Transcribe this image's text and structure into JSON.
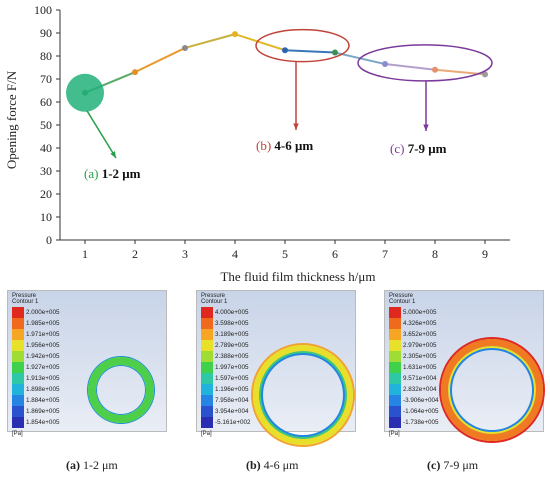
{
  "chart_data": {
    "type": "line",
    "x": [
      1,
      2,
      3,
      4,
      5,
      6,
      7,
      8,
      9
    ],
    "values": [
      64,
      73,
      83.5,
      89.5,
      82.5,
      81.5,
      76.5,
      74,
      72
    ],
    "segment_colors": [
      "#5aa96a",
      "#e79a2e",
      "#c6b13a",
      "#e1b92c",
      "#3a74b9",
      "#7aa5c4",
      "#b3a0cc",
      "#e9a878"
    ],
    "point_colors": [
      "#3b9a55",
      "#e39127",
      "#8a8a8a",
      "#e5b321",
      "#2d64b0",
      "#3d8f52",
      "#8a8cd0",
      "#e3916b",
      "#9a9a9a"
    ],
    "xlim": [
      0.5,
      9.5
    ],
    "ylim": [
      0,
      100
    ],
    "yticks": [
      0,
      10,
      20,
      30,
      40,
      50,
      60,
      70,
      80,
      90,
      100
    ],
    "xticks": [
      1,
      2,
      3,
      4,
      5,
      6,
      7,
      8,
      9
    ],
    "xlabel": "The fluid film thickness  h/μm",
    "ylabel": "Opening force    F/N",
    "annotations": [
      {
        "letter": "(a)",
        "text": "1-2 μm",
        "color": "#27a049"
      },
      {
        "letter": "(b)",
        "text": "4-6 μm",
        "color": "#c0433a"
      },
      {
        "letter": "(c)",
        "text": "7-9 μm",
        "color": "#7b3a9b"
      }
    ]
  },
  "panels": [
    {
      "title_line1": "Pressure",
      "title_line2": "Contour 1",
      "labels": [
        "2.000e+005",
        "1.985e+005",
        "1.971e+005",
        "1.956e+005",
        "1.942e+005",
        "1.927e+005",
        "1.913e+005",
        "1.898e+005",
        "1.884e+005",
        "1.869e+005",
        "1.854e+005"
      ],
      "colors": [
        "#e0281f",
        "#f06a1e",
        "#f6a623",
        "#e7e12a",
        "#9fdc36",
        "#3fd04c",
        "#2fc8a7",
        "#22b3dd",
        "#2685e2",
        "#2a52cf",
        "#2a2fb2"
      ],
      "unit": "[Pa]",
      "caption_letter": "(a)",
      "caption_text": "1-2 μm"
    },
    {
      "title_line1": "Pressure",
      "title_line2": "Contour 1",
      "labels": [
        "4.000e+005",
        "3.598e+005",
        "3.189e+005",
        "2.789e+005",
        "2.388e+005",
        "1.997e+005",
        "1.597e+005",
        "1.196e+005",
        "7.958e+004",
        "3.954e+004",
        "-5.161e+002"
      ],
      "colors": [
        "#e0281f",
        "#f06a1e",
        "#f6a623",
        "#e7e12a",
        "#9fdc36",
        "#3fd04c",
        "#2fc8a7",
        "#22b3dd",
        "#2685e2",
        "#2a52cf",
        "#2a2fb2"
      ],
      "unit": "[Pa]",
      "caption_letter": "(b)",
      "caption_text": "4-6 μm"
    },
    {
      "title_line1": "Pressure",
      "title_line2": "Contour 1",
      "labels": [
        "5.000e+005",
        "4.326e+005",
        "3.652e+005",
        "2.979e+005",
        "2.305e+005",
        "1.631e+005",
        "9.571e+004",
        "2.832e+004",
        "-3.906e+004",
        "-1.064e+005",
        "-1.738e+005"
      ],
      "colors": [
        "#e0281f",
        "#f06a1e",
        "#f6a623",
        "#e7e12a",
        "#9fdc36",
        "#3fd04c",
        "#2fc8a7",
        "#22b3dd",
        "#2685e2",
        "#2a52cf",
        "#2a2fb2"
      ],
      "unit": "[Pa]",
      "caption_letter": "(c)",
      "caption_text": "7-9  μm"
    }
  ]
}
